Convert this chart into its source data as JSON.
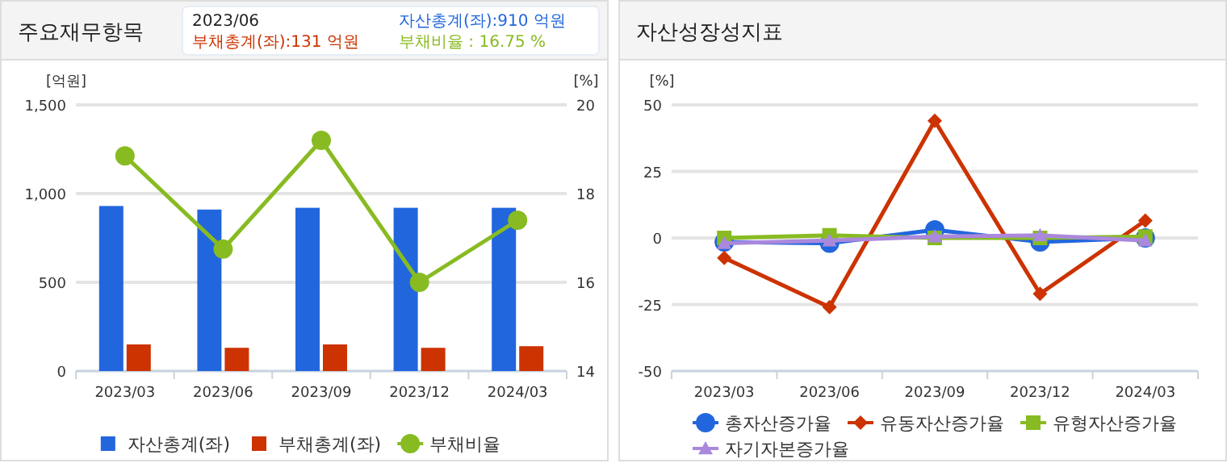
{
  "chart_data": [
    {
      "type": "bar",
      "title": "주요재무항목",
      "categories": [
        "2023/03",
        "2023/06",
        "2023/09",
        "2023/12",
        "2024/03"
      ],
      "series": [
        {
          "name": "자산총계(좌)",
          "color": "#2266dd",
          "values": [
            930,
            910,
            920,
            920,
            920
          ]
        },
        {
          "name": "부채총계(좌)",
          "color": "#cc3300",
          "values": [
            150,
            131,
            150,
            131,
            140
          ]
        },
        {
          "name": "부채비율",
          "color": "#88bb22",
          "type": "line",
          "axis": "y2",
          "marker": "circle",
          "values": [
            18.85,
            16.75,
            19.2,
            16.0,
            17.4
          ]
        }
      ],
      "ylim": [
        0,
        1500
      ],
      "yticks": [
        0,
        500,
        {
          "value": 1000,
          "label": "1,000"
        },
        {
          "value": 1500,
          "label": "1,500"
        }
      ],
      "y2lim": [
        14,
        20
      ],
      "y2ticks": [
        14,
        16,
        18,
        20
      ],
      "ylabel": "[억원]",
      "y2label": "[%]",
      "grid": "y",
      "legend": "bottom",
      "annotations": [
        "2023/06",
        "자산총계(좌):910 억원",
        "부채총계(좌):131 억원",
        "부채비율      : 16.75 %"
      ]
    },
    {
      "type": "line",
      "title": "자산성장성지표",
      "categories": [
        "2023/03",
        "2023/06",
        "2023/09",
        "2023/12",
        "2024/03"
      ],
      "series": [
        {
          "name": "총자산증가율",
          "color": "#2266dd",
          "marker": "circle",
          "values": [
            -1.5,
            -2,
            3,
            -1.5,
            0
          ]
        },
        {
          "name": "유동자산증가율",
          "color": "#cc3300",
          "marker": "diamond",
          "values": [
            -7.5,
            -26,
            44,
            -21,
            6.5
          ]
        },
        {
          "name": "유형자산증가율",
          "color": "#88bb22",
          "marker": "square",
          "values": [
            0,
            1,
            0,
            0,
            0.5
          ]
        },
        {
          "name": "자기자본증가율",
          "color": "#aa88dd",
          "marker": "triangle",
          "values": [
            -2,
            -1,
            0.5,
            1,
            -1
          ]
        }
      ],
      "ylim": [
        -50,
        50
      ],
      "yticks": [
        -50,
        -25,
        0,
        25,
        50
      ],
      "ylabel": "[%]",
      "grid": "y",
      "legend": "bottom"
    }
  ]
}
